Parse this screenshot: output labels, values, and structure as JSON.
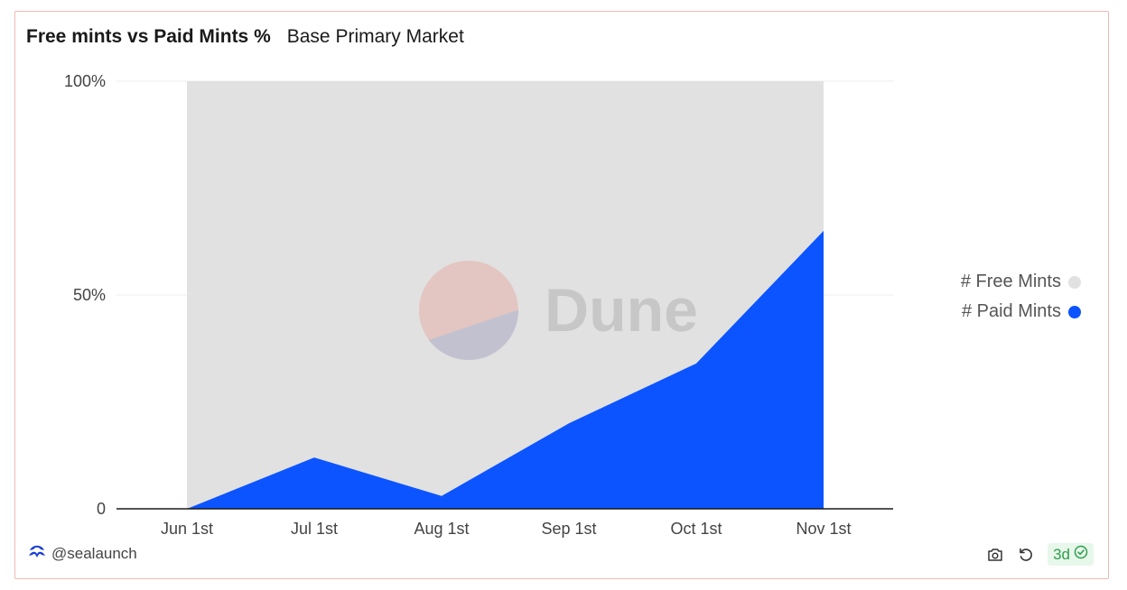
{
  "header": {
    "title": "Free mints vs Paid Mints %",
    "subtitle": "Base Primary Market"
  },
  "watermark": {
    "text": "Dune",
    "icon": "dune-logo-icon"
  },
  "footer": {
    "author": "@sealaunch",
    "author_icon": "sealaunch-logo-icon",
    "age": "3d",
    "icons": [
      "camera-icon",
      "refresh-icon",
      "check-circle-icon"
    ]
  },
  "colors": {
    "free": "#e1e1e1",
    "paid": "#0c54ff",
    "watermark_text": "#c6c6c6",
    "watermark_top": "#e4c5c0",
    "watermark_bottom": "#c1c0d0",
    "badge_green": "#2f9e4f"
  },
  "chart_data": {
    "type": "area",
    "stacked": "percent",
    "x": [
      "Jun 1st",
      "Jul 1st",
      "Aug 1st",
      "Sep 1st",
      "Oct 1st",
      "Nov 1st"
    ],
    "series": [
      {
        "name": "# Free Mints",
        "color": "#e1e1e1",
        "values": [
          100,
          88,
          97,
          80,
          66,
          35
        ]
      },
      {
        "name": "# Paid Mints",
        "color": "#0c54ff",
        "values": [
          0,
          12,
          3,
          20,
          34,
          65
        ]
      }
    ],
    "y_ticks": [
      {
        "value": 0,
        "label": "0"
      },
      {
        "value": 50,
        "label": "50%"
      },
      {
        "value": 100,
        "label": "100%"
      }
    ],
    "ylim": [
      0,
      100
    ],
    "legend_position": "right",
    "grid": true
  }
}
